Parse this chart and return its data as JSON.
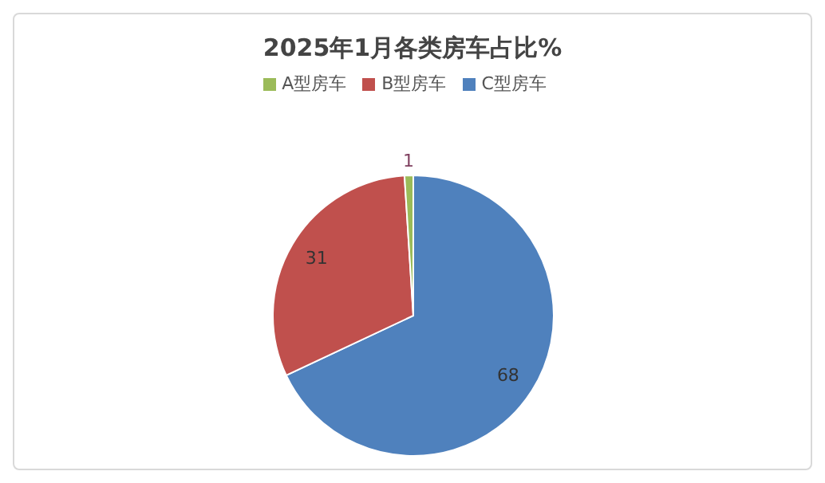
{
  "chart_data": {
    "type": "pie",
    "title": "2025年1月各类房车占比%",
    "categories": [
      "C型房车",
      "B型房车",
      "A型房车"
    ],
    "values": [
      68,
      31,
      1
    ],
    "colors": [
      "#4f81bd",
      "#c0504d",
      "#9bbb59"
    ],
    "data_labels": true,
    "legend": "top"
  }
}
